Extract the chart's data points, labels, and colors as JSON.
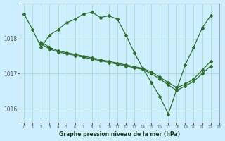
{
  "title": "Graphe pression niveau de la mer (hPa)",
  "bg_color": "#cceeff",
  "line_color": "#2d6e2d",
  "grid_color": "#aaddcc",
  "xlim": [
    -0.5,
    23
  ],
  "ylim": [
    1015.6,
    1019.0
  ],
  "yticks": [
    1016,
    1017,
    1018
  ],
  "xticks": [
    0,
    1,
    2,
    3,
    4,
    5,
    6,
    7,
    8,
    9,
    10,
    11,
    12,
    13,
    14,
    15,
    16,
    17,
    18,
    19,
    20,
    21,
    22,
    23
  ],
  "series1_x": [
    0,
    1,
    2,
    3,
    4,
    5,
    6,
    7,
    8,
    9,
    10,
    11,
    12,
    13,
    14,
    15,
    16,
    17,
    18,
    19,
    20,
    21,
    22
  ],
  "series1_y": [
    1018.7,
    1018.25,
    1017.75,
    1018.1,
    1018.25,
    1018.45,
    1018.55,
    1018.7,
    1018.75,
    1018.6,
    1018.65,
    1018.55,
    1018.1,
    1017.6,
    1017.15,
    1016.75,
    1016.35,
    1015.85,
    1016.55,
    1017.25,
    1017.75,
    1018.3,
    1018.65
  ],
  "series2_x": [
    2,
    3,
    4,
    5,
    6,
    7,
    8,
    9,
    10,
    11,
    12,
    13,
    14,
    15,
    16,
    17,
    18,
    19,
    20,
    21,
    22
  ],
  "series2_y": [
    1017.9,
    1017.75,
    1017.65,
    1017.6,
    1017.55,
    1017.5,
    1017.45,
    1017.4,
    1017.35,
    1017.3,
    1017.25,
    1017.2,
    1017.15,
    1017.05,
    1016.9,
    1016.75,
    1016.6,
    1016.7,
    1016.85,
    1017.1,
    1017.35
  ],
  "series3_x": [
    2,
    3,
    4,
    5,
    6,
    7,
    8,
    9,
    10,
    11,
    12,
    13,
    14,
    15,
    16,
    17,
    18,
    19,
    20,
    21,
    22
  ],
  "series3_y": [
    1017.85,
    1017.7,
    1017.62,
    1017.57,
    1017.52,
    1017.47,
    1017.42,
    1017.37,
    1017.32,
    1017.27,
    1017.22,
    1017.17,
    1017.12,
    1017.0,
    1016.85,
    1016.68,
    1016.52,
    1016.65,
    1016.78,
    1017.0,
    1017.22
  ]
}
